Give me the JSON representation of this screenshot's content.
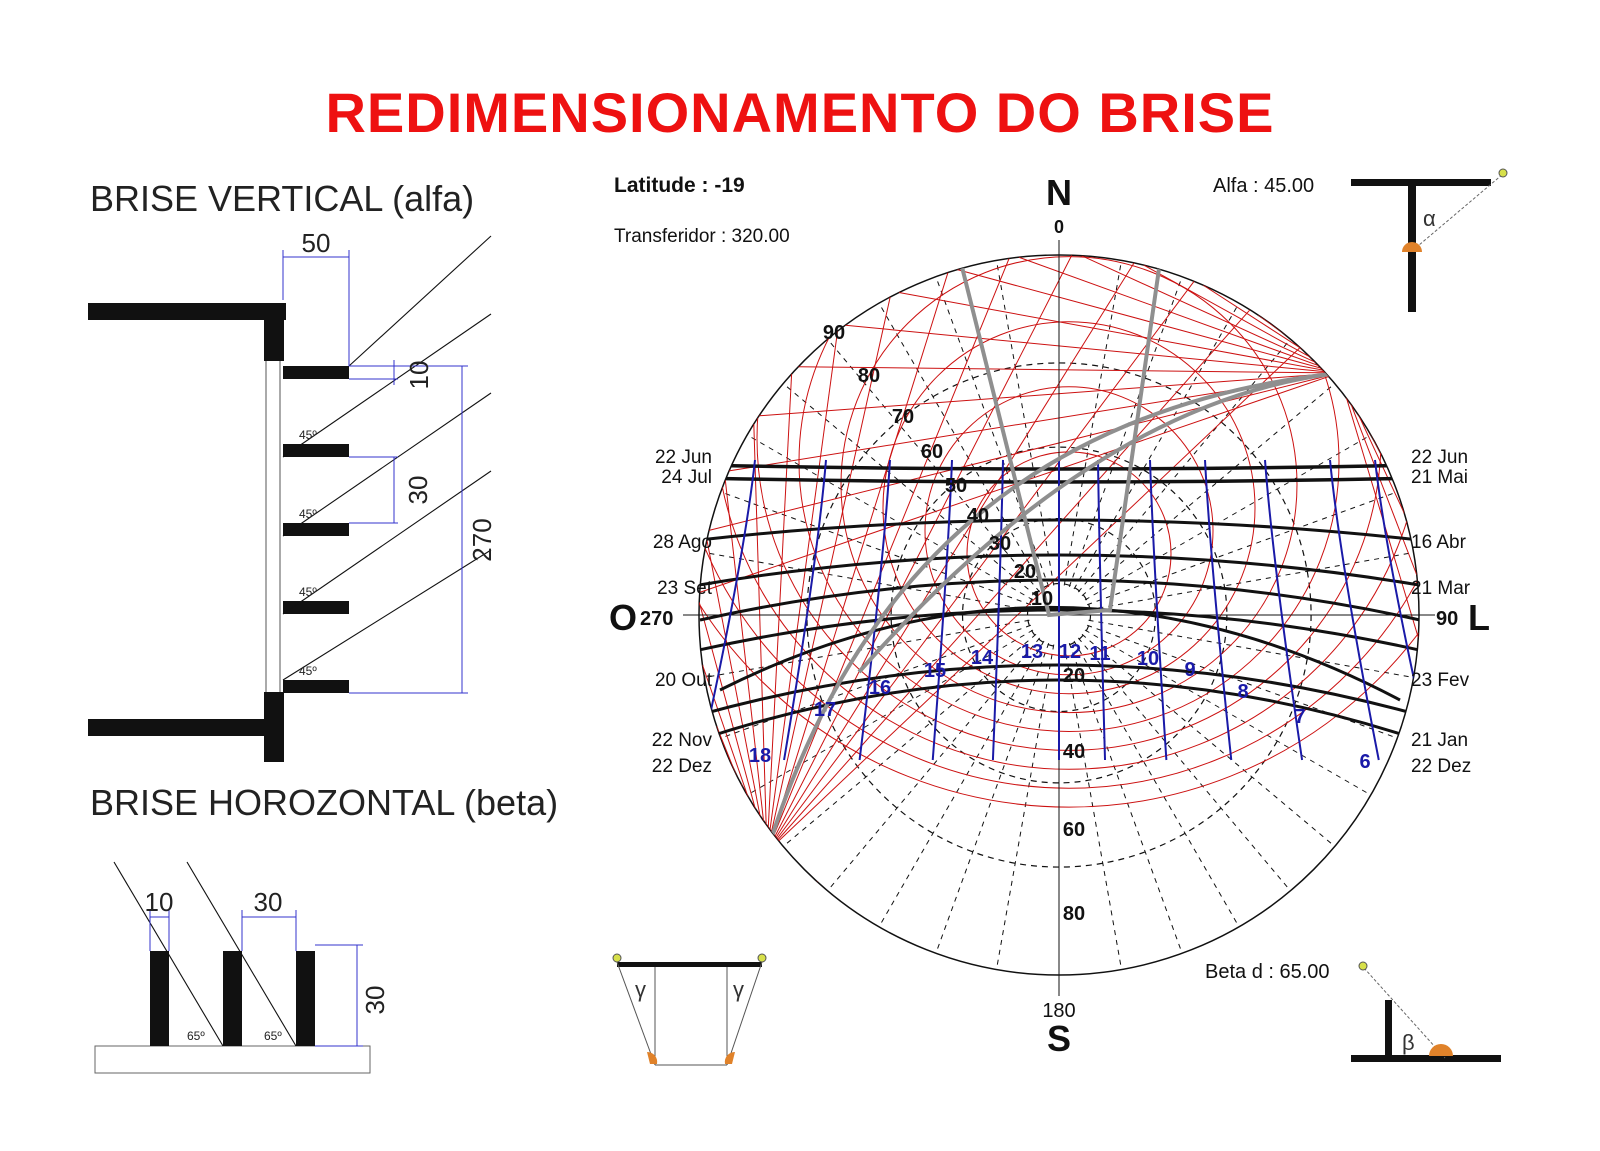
{
  "title": "REDIMENSIONAMENTO DO BRISE",
  "vertical_brise": {
    "heading": "BRISE VERTICAL (alfa)",
    "dim_depth": "50",
    "dim_gap_small": "10",
    "dim_spacing": "30",
    "dim_total": "270",
    "angle_label": "45º"
  },
  "horizontal_brise": {
    "heading": "BRISE HOROZONTAL (beta)",
    "dim_thickness": "10",
    "dim_spacing": "30",
    "dim_height": "30",
    "angle_label": "65º"
  },
  "sun_chart": {
    "latitude_label": "Latitude :  -19",
    "transferidor_label": "Transferidor : 320.00",
    "alfa_label": "Alfa : 45.00",
    "beta_label": "Beta d : 65.00",
    "alpha_symbol": "α",
    "beta_symbol": "β",
    "gamma_symbol": "γ",
    "north_letter": "N",
    "north_degree": "0",
    "south_letter": "S",
    "south_degree": "180",
    "west_letter": "O",
    "west_degree": "270",
    "east_letter": "L",
    "east_degree": "90",
    "left_dates": [
      "22 Jun",
      "24 Jul",
      "28 Ago",
      "23 Set",
      "20 Out",
      "22 Nov",
      "22 Dez"
    ],
    "right_dates": [
      "22 Jun",
      "21 Mai",
      "16 Abr",
      "21 Mar",
      "23 Fev",
      "21 Jan",
      "22 Dez"
    ],
    "hour_labels": [
      "6",
      "7",
      "8",
      "9",
      "10",
      "11",
      "12",
      "13",
      "14",
      "15",
      "16",
      "17",
      "18"
    ],
    "protractor_labels": [
      "90",
      "80",
      "70",
      "60",
      "50",
      "40",
      "30",
      "20",
      "10"
    ],
    "lower_labels": [
      "20",
      "40",
      "60",
      "80"
    ],
    "colors": {
      "red_grid": "#cc1111",
      "hour_lines": "#1a1aa8",
      "mask_lines": "#8f8f8f",
      "title": "#ee1111"
    }
  }
}
